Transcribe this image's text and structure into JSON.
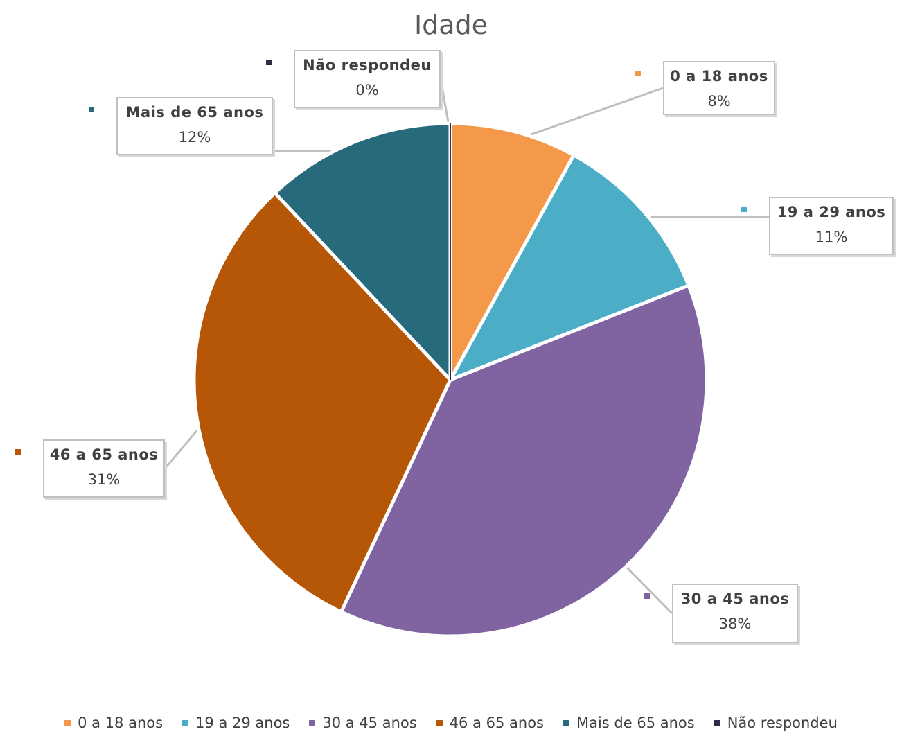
{
  "chart_data": {
    "type": "pie",
    "title": "Idade",
    "categories": [
      "0 a 18 anos",
      "19 a 29 anos",
      "30 a 45 anos",
      "46 a 65 anos",
      "Mais de 65 anos",
      "Não respondeu"
    ],
    "values": [
      8,
      11,
      38,
      31,
      12,
      0
    ],
    "data_labels": [
      "8%",
      "11%",
      "38%",
      "31%",
      "12%",
      "0%"
    ],
    "colors": [
      "#f4994a",
      "#4badc6",
      "#8064a2",
      "#b65708",
      "#276a7c",
      "#2f2a45"
    ],
    "legend_position": "bottom",
    "start_angle": "12 o'clock, clockwise"
  }
}
